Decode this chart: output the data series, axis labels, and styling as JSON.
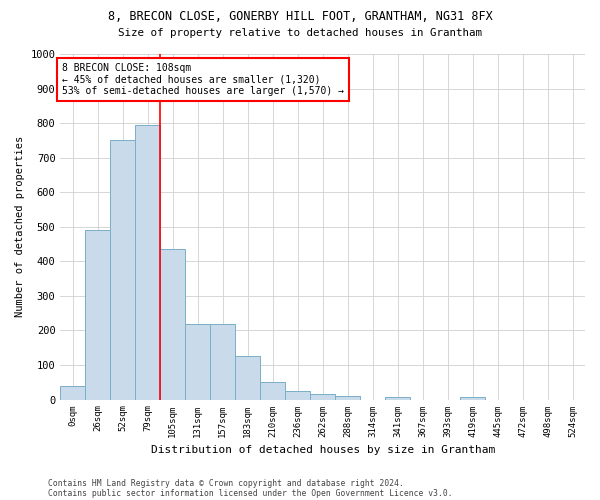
{
  "title1": "8, BRECON CLOSE, GONERBY HILL FOOT, GRANTHAM, NG31 8FX",
  "title2": "Size of property relative to detached houses in Grantham",
  "xlabel": "Distribution of detached houses by size in Grantham",
  "ylabel": "Number of detached properties",
  "categories": [
    "0sqm",
    "26sqm",
    "52sqm",
    "79sqm",
    "105sqm",
    "131sqm",
    "157sqm",
    "183sqm",
    "210sqm",
    "236sqm",
    "262sqm",
    "288sqm",
    "314sqm",
    "341sqm",
    "367sqm",
    "393sqm",
    "419sqm",
    "445sqm",
    "472sqm",
    "498sqm",
    "524sqm"
  ],
  "values": [
    40,
    490,
    750,
    795,
    435,
    220,
    220,
    125,
    50,
    25,
    15,
    10,
    0,
    8,
    0,
    0,
    8,
    0,
    0,
    0,
    0
  ],
  "bar_color": "#c9daea",
  "bar_edge_color": "#7aaec8",
  "red_line_x": 4.0,
  "annotation_text": "8 BRECON CLOSE: 108sqm\n← 45% of detached houses are smaller (1,320)\n53% of semi-detached houses are larger (1,570) →",
  "annotation_box_color": "white",
  "annotation_box_edge_color": "red",
  "footer1": "Contains HM Land Registry data © Crown copyright and database right 2024.",
  "footer2": "Contains public sector information licensed under the Open Government Licence v3.0.",
  "ylim": [
    0,
    1000
  ],
  "yticks": [
    0,
    100,
    200,
    300,
    400,
    500,
    600,
    700,
    800,
    900,
    1000
  ],
  "grid_color": "#d0d0d0",
  "fig_width": 6.0,
  "fig_height": 5.0,
  "dpi": 100
}
